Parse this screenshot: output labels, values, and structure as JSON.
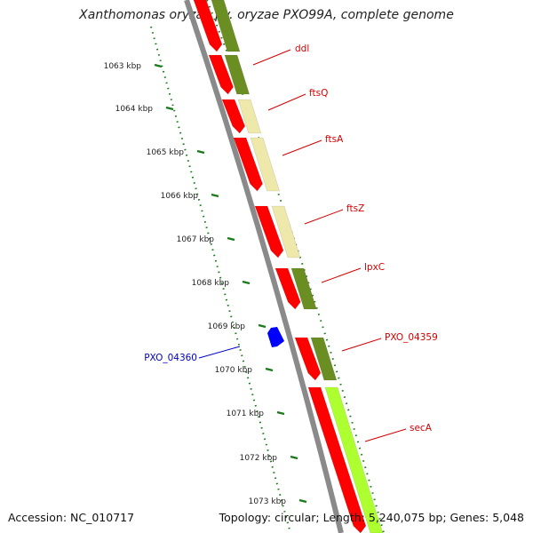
{
  "header": {
    "title": "Xanthomonas oryzae pv. oryzae PXO99A, complete genome"
  },
  "footer": {
    "accession": "Accession: NC_010717",
    "stats": "Topology: circular; Length: 5,240,075 bp; Genes: 5,048"
  },
  "ruler": {
    "ticks": [
      "1063 kbp",
      "1064 kbp",
      "1065 kbp",
      "1066 kbp",
      "1067 kbp",
      "1068 kbp",
      "1069 kbp",
      "1070 kbp",
      "1071 kbp",
      "1072 kbp",
      "1073 kbp"
    ]
  },
  "genes": {
    "forward": [
      {
        "label": "ddl",
        "color": "#6b8e23"
      },
      {
        "label": "ftsQ",
        "color": "#6b8e23"
      },
      {
        "label": "ftsA",
        "color": "#eee8aa"
      },
      {
        "label": "ftsZ",
        "color": "#eee8aa"
      },
      {
        "label": "lpxC",
        "color": "#6b8e23"
      },
      {
        "label": "PXO_04359",
        "color": "#6b8e23"
      },
      {
        "label": "secA",
        "color": "#adff2f"
      }
    ],
    "reverse": [
      {
        "label": "PXO_04360",
        "color": "#0000ff"
      }
    ]
  },
  "colors": {
    "cds": "#ff0000",
    "backbone": "#888888",
    "ticks": "#1a7a1a"
  }
}
